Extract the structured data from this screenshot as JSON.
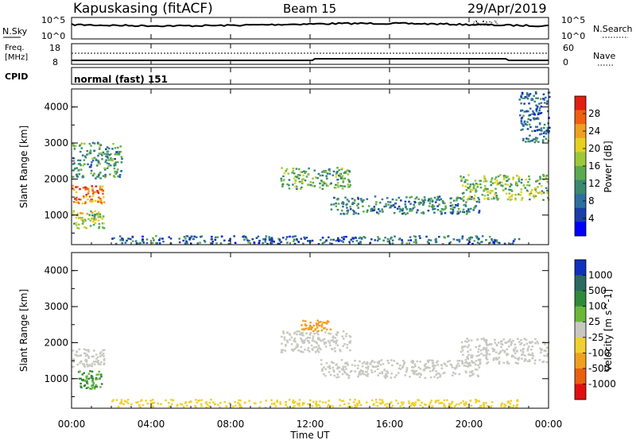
{
  "header": {
    "station": "Kapuskasing (fitACF)",
    "beam": "Beam 15",
    "date": "29/Apr/2019"
  },
  "noise_panel": {
    "left_label": "N.Sky",
    "left_ticks": [
      "10^5",
      "10^0"
    ],
    "right_ticks": [
      "10^5",
      "10^0"
    ],
    "right_label": "N.Search"
  },
  "freq_panel": {
    "left_label_line1": "Freq.",
    "left_label_line2": "[MHz]",
    "left_ticks": [
      "18",
      "8"
    ],
    "right_ticks": [
      "60",
      "0"
    ],
    "right_label": "Nave"
  },
  "cpid": {
    "label": "CPID",
    "value": "normal (fast) 151"
  },
  "chart_data": [
    {
      "type": "heatmap",
      "name": "Power",
      "ylabel": "Slant Range [km]",
      "yticks": [
        "4000",
        "3000",
        "2000",
        "1000"
      ],
      "ytick_values": [
        4000,
        3000,
        2000,
        1000
      ],
      "ylim": [
        180,
        4500
      ],
      "colorbar_label": "Power [dB]",
      "colorbar_ticks": [
        "28",
        "24",
        "20",
        "16",
        "12",
        "8",
        "4"
      ],
      "colorbar_range": [
        0,
        32
      ],
      "colors": [
        "#0000ff",
        "#1a3fa8",
        "#2f6fa0",
        "#3a8a70",
        "#5aaa50",
        "#9cc83a",
        "#e8d020",
        "#f0a020",
        "#f06010",
        "#e02010"
      ],
      "regions": [
        {
          "start_hour": 0.0,
          "end_hour": 1.6,
          "range_km": [
            1300,
            1800
          ],
          "power_db": 26
        },
        {
          "start_hour": 0.0,
          "end_hour": 1.6,
          "range_km": [
            600,
            1100
          ],
          "power_db": 18
        },
        {
          "start_hour": 0.0,
          "end_hour": 2.5,
          "range_km": [
            2000,
            3000
          ],
          "power_db": 12
        },
        {
          "start_hour": 10.5,
          "end_hour": 14.0,
          "range_km": [
            1700,
            2300
          ],
          "power_db": 14
        },
        {
          "start_hour": 13.0,
          "end_hour": 20.5,
          "range_km": [
            1000,
            1500
          ],
          "power_db": 10
        },
        {
          "start_hour": 19.5,
          "end_hour": 24.0,
          "range_km": [
            1400,
            2100
          ],
          "power_db": 16
        },
        {
          "start_hour": 2.0,
          "end_hour": 22.5,
          "range_km": [
            180,
            400
          ],
          "power_db": 8
        },
        {
          "start_hour": 22.5,
          "end_hour": 24.0,
          "range_km": [
            3000,
            4400
          ],
          "power_db": 8
        }
      ]
    },
    {
      "type": "heatmap",
      "name": "Velocity",
      "ylabel": "Slant Range [km]",
      "yticks": [
        "4000",
        "3000",
        "2000",
        "1000"
      ],
      "ytick_values": [
        4000,
        3000,
        2000,
        1000
      ],
      "ylim": [
        180,
        4500
      ],
      "colorbar_label": "Velocity [m s^-1]",
      "colorbar_ticks": [
        "1000",
        "500",
        "100",
        "25",
        "-25",
        "-100",
        "-500",
        "-1000"
      ],
      "colors": [
        "#1030c0",
        "#2a6a60",
        "#2f8a3a",
        "#6ab83a",
        "#c8c8c0",
        "#f0d030",
        "#f0a020",
        "#e86010",
        "#e01010"
      ],
      "regions": [
        {
          "start_hour": 0.0,
          "end_hour": 1.6,
          "range_km": [
            1300,
            1800
          ],
          "velocity": 0
        },
        {
          "start_hour": 0.3,
          "end_hour": 1.5,
          "range_km": [
            700,
            1200
          ],
          "velocity": 100
        },
        {
          "start_hour": 10.5,
          "end_hour": 14.0,
          "range_km": [
            1700,
            2300
          ],
          "velocity": 0
        },
        {
          "start_hour": 12.5,
          "end_hour": 20.5,
          "range_km": [
            1000,
            1500
          ],
          "velocity": 0
        },
        {
          "start_hour": 19.5,
          "end_hour": 24.0,
          "range_km": [
            1400,
            2100
          ],
          "velocity": 0
        },
        {
          "start_hour": 2.0,
          "end_hour": 22.5,
          "range_km": [
            180,
            400
          ],
          "velocity": -60
        },
        {
          "start_hour": 11.5,
          "end_hour": 13.0,
          "range_km": [
            2300,
            2600
          ],
          "velocity": -200
        }
      ]
    }
  ],
  "x_axis": {
    "ticks": [
      "00:00",
      "04:00",
      "08:00",
      "12:00",
      "16:00",
      "20:00",
      "00:00"
    ],
    "tick_hours": [
      0,
      4,
      8,
      12,
      16,
      20,
      24
    ],
    "label": "Time UT"
  }
}
